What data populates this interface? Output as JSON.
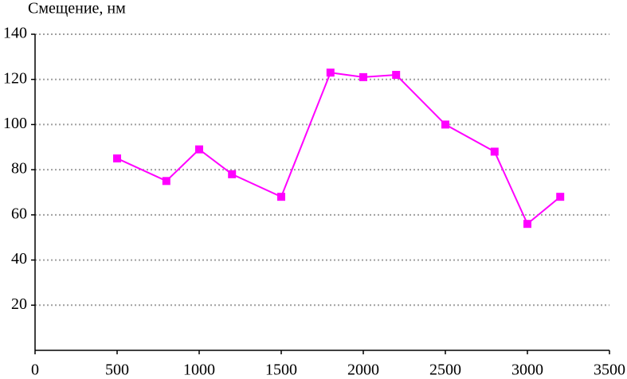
{
  "chart_data": {
    "type": "line",
    "ylabel": "Смещение, нм",
    "x": [
      500,
      800,
      1000,
      1200,
      1500,
      1800,
      2000,
      2200,
      2500,
      2800,
      3000,
      3200
    ],
    "values": [
      85,
      75,
      89,
      78,
      68,
      123,
      121,
      122,
      100,
      88,
      56,
      68
    ],
    "color": "#ff00ff",
    "xlim": [
      0,
      3500
    ],
    "xticks": [
      0,
      500,
      1000,
      1500,
      2000,
      2500,
      3000,
      3500
    ],
    "ylim": [
      0,
      140
    ],
    "yticks": [
      20,
      40,
      60,
      80,
      100,
      120,
      140
    ],
    "grid": true
  }
}
